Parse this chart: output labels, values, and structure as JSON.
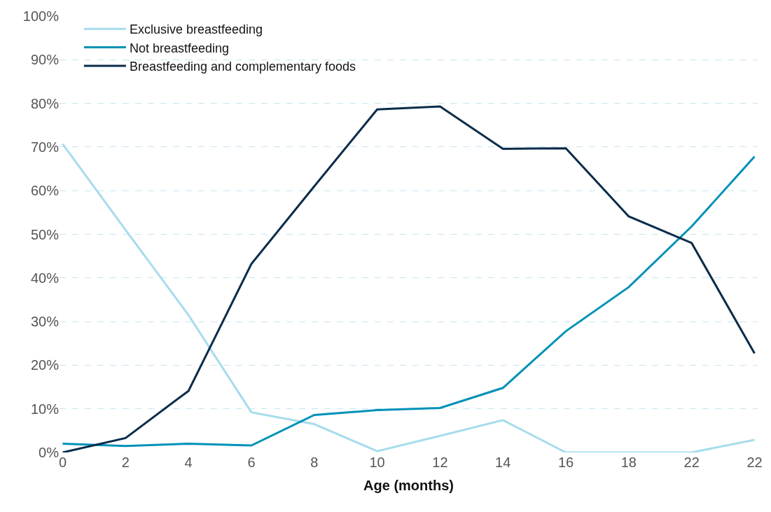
{
  "chart_data": {
    "type": "line",
    "xlabel": "Age (months)",
    "categories": [
      "0",
      "2",
      "4",
      "6",
      "8",
      "10",
      "12",
      "14",
      "16",
      "18",
      "22",
      "22"
    ],
    "series": [
      {
        "name": "Exclusive breastfeeding",
        "color": "#a6dcec",
        "values": [
          70.7,
          51,
          31.5,
          9.2,
          6.5,
          0.3,
          3.8,
          7.4,
          0,
          0,
          0,
          2.9
        ]
      },
      {
        "name": "Not breastfeeding",
        "color": "#0091b8",
        "values": [
          2.0,
          1.5,
          2.0,
          1.6,
          8.6,
          9.7,
          10.2,
          14.8,
          27.8,
          37.9,
          51.8,
          67.8
        ]
      },
      {
        "name": "Breastfeeding and complementary foods",
        "color": "#0a2c4a",
        "values": [
          0,
          3.3,
          14.1,
          43.2,
          61,
          78.6,
          79.3,
          69.6,
          69.7,
          54.1,
          48.0,
          22.7
        ]
      }
    ],
    "ylim": [
      0,
      100
    ],
    "yticks": [
      {
        "value": 0,
        "label": "0%"
      },
      {
        "value": 10,
        "label": "10%"
      },
      {
        "value": 20,
        "label": "20%"
      },
      {
        "value": 30,
        "label": "30%"
      },
      {
        "value": 40,
        "label": "40%"
      },
      {
        "value": 50,
        "label": "50%"
      },
      {
        "value": 60,
        "label": "60%"
      },
      {
        "value": 70,
        "label": "70%"
      },
      {
        "value": 80,
        "label": "80%"
      },
      {
        "value": 90,
        "label": "90%"
      },
      {
        "value": 100,
        "label": "100%"
      }
    ],
    "grid": "y",
    "legend": "top left",
    "marker": "none",
    "line_style": "solid"
  }
}
